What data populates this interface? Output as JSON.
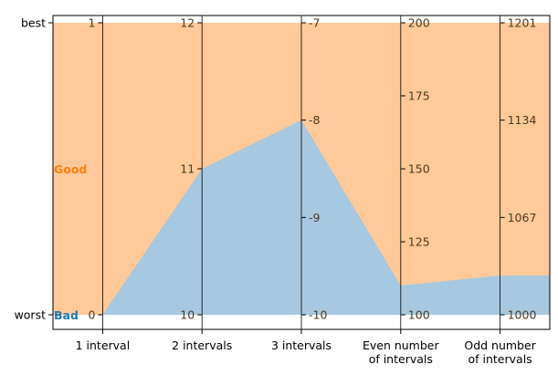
{
  "chart_data": {
    "type": "area",
    "title": "",
    "ylabel_ticks": [
      "best",
      "worst"
    ],
    "categories": [
      "1 interval",
      "2 intervals",
      "3 intervals",
      "Even number\nof intervals",
      "Odd number\nof intervals"
    ],
    "axes": [
      {
        "name": "1 interval",
        "min": 0,
        "max": 1,
        "tick_labels": [
          "0",
          "1"
        ],
        "tick_values": [
          0,
          1
        ]
      },
      {
        "name": "2 intervals",
        "min": 10,
        "max": 12,
        "tick_labels": [
          "10",
          "11",
          "12"
        ],
        "tick_values": [
          10,
          11,
          12
        ]
      },
      {
        "name": "3 intervals",
        "min": -10,
        "max": -7,
        "tick_labels": [
          "-10",
          "-9",
          "-8",
          "-7"
        ],
        "tick_values": [
          -10,
          -9,
          -8,
          -7
        ]
      },
      {
        "name": "Even number of intervals",
        "min": 100,
        "max": 200,
        "tick_labels": [
          "100",
          "125",
          "150",
          "175",
          "200"
        ],
        "tick_values": [
          100,
          125,
          150,
          175,
          200
        ]
      },
      {
        "name": "Odd number of intervals",
        "min": 1000,
        "max": 1201,
        "tick_labels": [
          "1000",
          "1067",
          "1134",
          "1201"
        ],
        "tick_values": [
          1000,
          1067,
          1134,
          1201
        ]
      }
    ],
    "series": [
      {
        "name": "Good",
        "color": "#ffc999",
        "label_color": "#ff7f0e",
        "values": [
          1,
          12,
          -7,
          200,
          1201
        ]
      },
      {
        "name": "Bad",
        "color": "#a6c8e0",
        "label_color": "#1f77b4",
        "values": [
          0,
          11,
          -8,
          110,
          1027
        ]
      }
    ],
    "colors": {
      "axis": "#000000",
      "tick_label": "#4d3b22"
    }
  }
}
